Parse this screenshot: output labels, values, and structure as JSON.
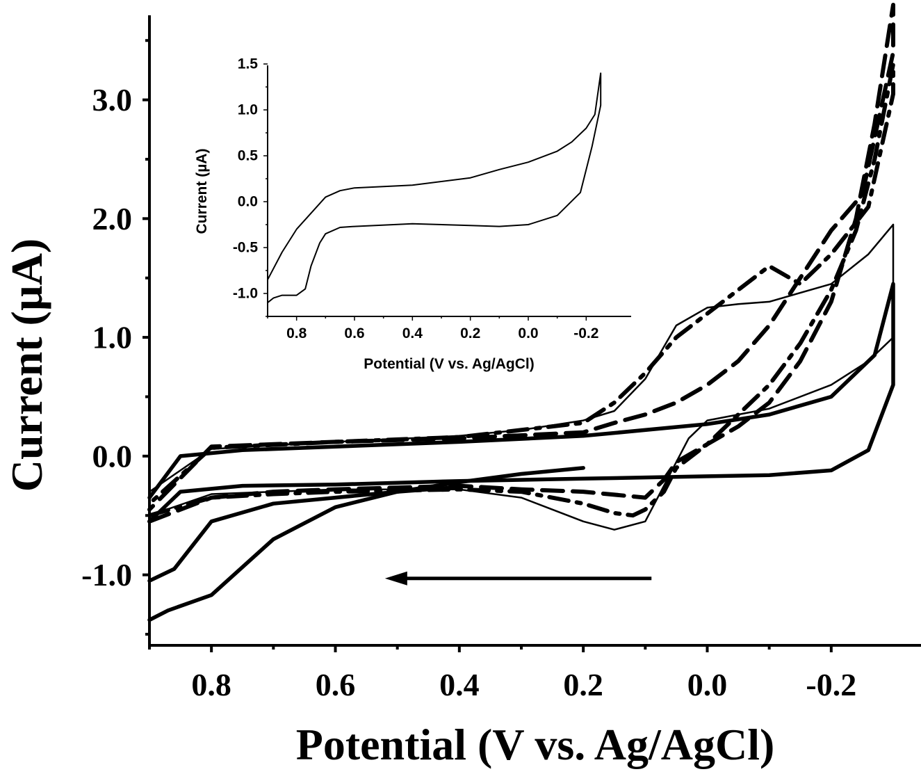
{
  "chart_data": [
    {
      "type": "line",
      "title": "",
      "xlabel": "Potential (V vs. Ag/AgCl)",
      "ylabel": "Current (µA)",
      "xlim": [
        0.9,
        -0.3
      ],
      "ylim": [
        -1.5,
        3.8
      ],
      "x_reversed": true,
      "xticks": [
        0.8,
        0.6,
        0.4,
        0.2,
        0.0,
        -0.2
      ],
      "xtick_labels": [
        "0.8",
        "0.6",
        "0.4",
        "0.2",
        "0.0",
        "-0.2"
      ],
      "yticks": [
        -1.0,
        0.0,
        1.0,
        2.0,
        3.0
      ],
      "ytick_labels": [
        "-1.0",
        "0.0",
        "1.0",
        "2.0",
        "3.0"
      ],
      "grid": false,
      "legend": "none",
      "annotations": [
        {
          "kind": "arrow",
          "direction": "toward higher potential",
          "from": [
            0.09,
            -1.03
          ],
          "to": [
            0.52,
            -1.03
          ]
        }
      ],
      "series": [
        {
          "style": "thick-solid",
          "x": [
            0.9,
            0.85,
            0.75,
            0.6,
            0.4,
            0.2,
            0.0,
            -0.1,
            -0.2,
            -0.26,
            -0.3,
            -0.3,
            -0.27,
            -0.2,
            -0.1,
            0.0,
            0.2,
            0.4,
            0.6,
            0.75,
            0.85,
            0.9
          ],
          "y": [
            -0.55,
            -0.3,
            -0.25,
            -0.24,
            -0.21,
            -0.19,
            -0.17,
            -0.16,
            -0.12,
            0.05,
            0.6,
            1.45,
            0.85,
            0.5,
            0.35,
            0.27,
            0.17,
            0.12,
            0.08,
            0.05,
            0.0,
            -0.35
          ]
        },
        {
          "style": "thick-solid",
          "x": [
            0.9,
            0.87,
            0.8,
            0.7,
            0.6,
            0.5,
            0.4,
            0.3,
            0.2
          ],
          "y": [
            -1.38,
            -1.3,
            -1.17,
            -0.7,
            -0.43,
            -0.3,
            -0.22,
            -0.15,
            -0.1
          ]
        },
        {
          "style": "thick-solid",
          "x": [
            0.9,
            0.86,
            0.8,
            0.7,
            0.6,
            0.5,
            0.4
          ],
          "y": [
            -1.05,
            -0.95,
            -0.55,
            -0.4,
            -0.35,
            -0.3,
            -0.26
          ]
        },
        {
          "style": "thin-solid",
          "x": [
            0.9,
            0.8,
            0.6,
            0.4,
            0.3,
            0.25,
            0.2,
            0.15,
            0.1,
            0.07,
            0.03,
            0.0,
            -0.1,
            -0.2,
            -0.26,
            -0.3,
            -0.3,
            -0.26,
            -0.2,
            -0.1,
            -0.05,
            0.0,
            0.05,
            0.1,
            0.15,
            0.2,
            0.3,
            0.4,
            0.6,
            0.8,
            0.9
          ],
          "y": [
            -0.5,
            -0.32,
            -0.28,
            -0.28,
            -0.35,
            -0.45,
            -0.55,
            -0.62,
            -0.55,
            -0.25,
            0.15,
            0.3,
            0.4,
            0.6,
            0.8,
            1.0,
            1.95,
            1.7,
            1.45,
            1.3,
            1.28,
            1.25,
            1.1,
            0.65,
            0.38,
            0.3,
            0.22,
            0.17,
            0.12,
            0.06,
            -0.3
          ]
        },
        {
          "style": "dashed",
          "x": [
            0.9,
            0.8,
            0.7,
            0.6,
            0.4,
            0.3,
            0.2,
            0.1,
            0.07,
            0.05,
            0.0,
            -0.05,
            -0.1,
            -0.15,
            -0.2,
            -0.24,
            -0.27,
            -0.3,
            -0.3,
            -0.25,
            -0.2,
            -0.15,
            -0.1,
            -0.05,
            0.0,
            0.05,
            0.1,
            0.15,
            0.2,
            0.4,
            0.6,
            0.8,
            0.9
          ],
          "y": [
            -0.55,
            -0.35,
            -0.3,
            -0.28,
            -0.25,
            -0.28,
            -0.3,
            -0.35,
            -0.2,
            -0.05,
            0.1,
            0.25,
            0.45,
            0.8,
            1.3,
            2.0,
            2.8,
            3.8,
            3.4,
            2.2,
            1.9,
            1.5,
            1.1,
            0.8,
            0.6,
            0.45,
            0.35,
            0.28,
            0.2,
            0.15,
            0.12,
            0.08,
            -0.45
          ]
        },
        {
          "style": "dash-dot",
          "x": [
            0.9,
            0.8,
            0.7,
            0.6,
            0.4,
            0.3,
            0.2,
            0.15,
            0.12,
            0.1,
            0.07,
            0.05,
            0.0,
            -0.05,
            -0.1,
            -0.15,
            -0.2,
            -0.24,
            -0.27,
            -0.3,
            -0.3,
            -0.26,
            -0.2,
            -0.15,
            -0.1,
            0.0,
            0.05,
            0.1,
            0.15,
            0.2,
            0.4,
            0.6,
            0.8,
            0.9
          ],
          "y": [
            -0.5,
            -0.35,
            -0.32,
            -0.3,
            -0.28,
            -0.3,
            -0.4,
            -0.48,
            -0.5,
            -0.45,
            -0.3,
            -0.1,
            0.1,
            0.35,
            0.6,
            0.95,
            1.4,
            1.9,
            2.5,
            3.3,
            3.05,
            2.1,
            1.7,
            1.45,
            1.6,
            1.2,
            1.0,
            0.7,
            0.45,
            0.28,
            0.16,
            0.12,
            0.07,
            -0.4
          ]
        }
      ]
    },
    {
      "type": "line",
      "title": "",
      "xlabel": "Potential (V vs. Ag/AgCl)",
      "ylabel": "Current (µA)",
      "xlim": [
        0.9,
        -0.3
      ],
      "ylim": [
        -1.25,
        1.5
      ],
      "x_reversed": true,
      "xticks": [
        0.8,
        0.6,
        0.4,
        0.2,
        0.0,
        -0.2
      ],
      "xtick_labels": [
        "0.8",
        "0.6",
        "0.4",
        "0.2",
        "0.0",
        "-0.2"
      ],
      "yticks": [
        -1.0,
        -0.5,
        0.0,
        0.5,
        1.0,
        1.5
      ],
      "ytick_labels": [
        "-1.0",
        "-0.5",
        "0.0",
        "0.5",
        "1.0",
        "1.5"
      ],
      "grid": false,
      "legend": "none",
      "series": [
        {
          "style": "thin-solid",
          "x": [
            0.9,
            0.88,
            0.85,
            0.8,
            0.77,
            0.75,
            0.72,
            0.7,
            0.65,
            0.6,
            0.4,
            0.2,
            0.1,
            0.0,
            -0.1,
            -0.18,
            -0.22,
            -0.25,
            -0.25,
            -0.23,
            -0.2,
            -0.15,
            -0.1,
            0.0,
            0.1,
            0.2,
            0.4,
            0.6,
            0.65,
            0.7,
            0.8,
            0.85,
            0.9
          ],
          "y": [
            -1.1,
            -1.05,
            -1.02,
            -1.02,
            -0.95,
            -0.7,
            -0.45,
            -0.35,
            -0.28,
            -0.27,
            -0.24,
            -0.26,
            -0.27,
            -0.25,
            -0.15,
            0.1,
            0.6,
            1.05,
            1.4,
            0.95,
            0.8,
            0.65,
            0.55,
            0.43,
            0.35,
            0.26,
            0.18,
            0.15,
            0.12,
            0.05,
            -0.3,
            -0.55,
            -0.85
          ]
        }
      ]
    }
  ]
}
